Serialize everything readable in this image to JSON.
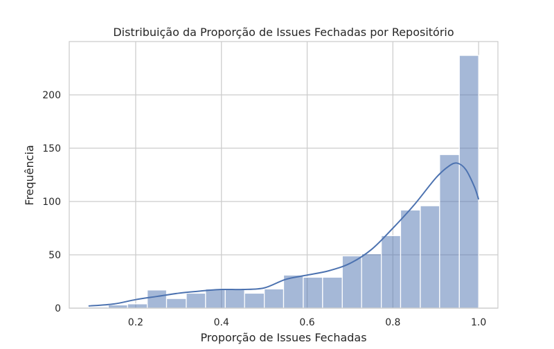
{
  "chart_data": {
    "type": "bar",
    "title": "Distribuição da Proporção de Issues Fechadas por Repositório",
    "xlabel": "Proporção de Issues Fechadas",
    "ylabel": "Frequência",
    "xlim": [
      0.045,
      1.045
    ],
    "ylim": [
      0,
      250
    ],
    "x_ticks": [
      {
        "value": 0.2,
        "label": "0.2"
      },
      {
        "value": 0.4,
        "label": "0.4"
      },
      {
        "value": 0.6,
        "label": "0.6"
      },
      {
        "value": 0.8,
        "label": "0.8"
      },
      {
        "value": 1.0,
        "label": "1.0"
      }
    ],
    "y_ticks": [
      {
        "value": 0,
        "label": "0"
      },
      {
        "value": 50,
        "label": "50"
      },
      {
        "value": 100,
        "label": "100"
      },
      {
        "value": 150,
        "label": "150"
      },
      {
        "value": 200,
        "label": "200"
      }
    ],
    "grid": true,
    "bar_color": "#4c72b0",
    "kde_color": "#4c72b0",
    "bins": [
      {
        "x0": 0.09,
        "x1": 0.136,
        "count": 1
      },
      {
        "x0": 0.136,
        "x1": 0.181,
        "count": 3
      },
      {
        "x0": 0.181,
        "x1": 0.227,
        "count": 4
      },
      {
        "x0": 0.227,
        "x1": 0.272,
        "count": 17
      },
      {
        "x0": 0.272,
        "x1": 0.318,
        "count": 9
      },
      {
        "x0": 0.318,
        "x1": 0.363,
        "count": 14
      },
      {
        "x0": 0.363,
        "x1": 0.409,
        "count": 18
      },
      {
        "x0": 0.409,
        "x1": 0.454,
        "count": 18
      },
      {
        "x0": 0.454,
        "x1": 0.5,
        "count": 14
      },
      {
        "x0": 0.5,
        "x1": 0.545,
        "count": 18
      },
      {
        "x0": 0.545,
        "x1": 0.591,
        "count": 31
      },
      {
        "x0": 0.591,
        "x1": 0.636,
        "count": 29
      },
      {
        "x0": 0.636,
        "x1": 0.682,
        "count": 29
      },
      {
        "x0": 0.682,
        "x1": 0.727,
        "count": 49
      },
      {
        "x0": 0.727,
        "x1": 0.773,
        "count": 51
      },
      {
        "x0": 0.773,
        "x1": 0.818,
        "count": 68
      },
      {
        "x0": 0.818,
        "x1": 0.864,
        "count": 92
      },
      {
        "x0": 0.864,
        "x1": 0.909,
        "count": 96
      },
      {
        "x0": 0.909,
        "x1": 0.955,
        "count": 144
      },
      {
        "x0": 0.955,
        "x1": 1.0,
        "count": 237
      }
    ],
    "kde": {
      "x": [
        0.09,
        0.15,
        0.2,
        0.25,
        0.3,
        0.35,
        0.4,
        0.45,
        0.5,
        0.55,
        0.6,
        0.65,
        0.7,
        0.75,
        0.8,
        0.85,
        0.9,
        0.93,
        0.95,
        0.97,
        0.99,
        1.0
      ],
      "y": [
        2,
        4,
        8,
        11,
        14,
        16,
        17.5,
        17.5,
        19,
        27,
        31,
        35,
        42,
        55,
        75,
        97,
        122,
        133,
        136,
        130,
        114,
        102
      ]
    }
  }
}
